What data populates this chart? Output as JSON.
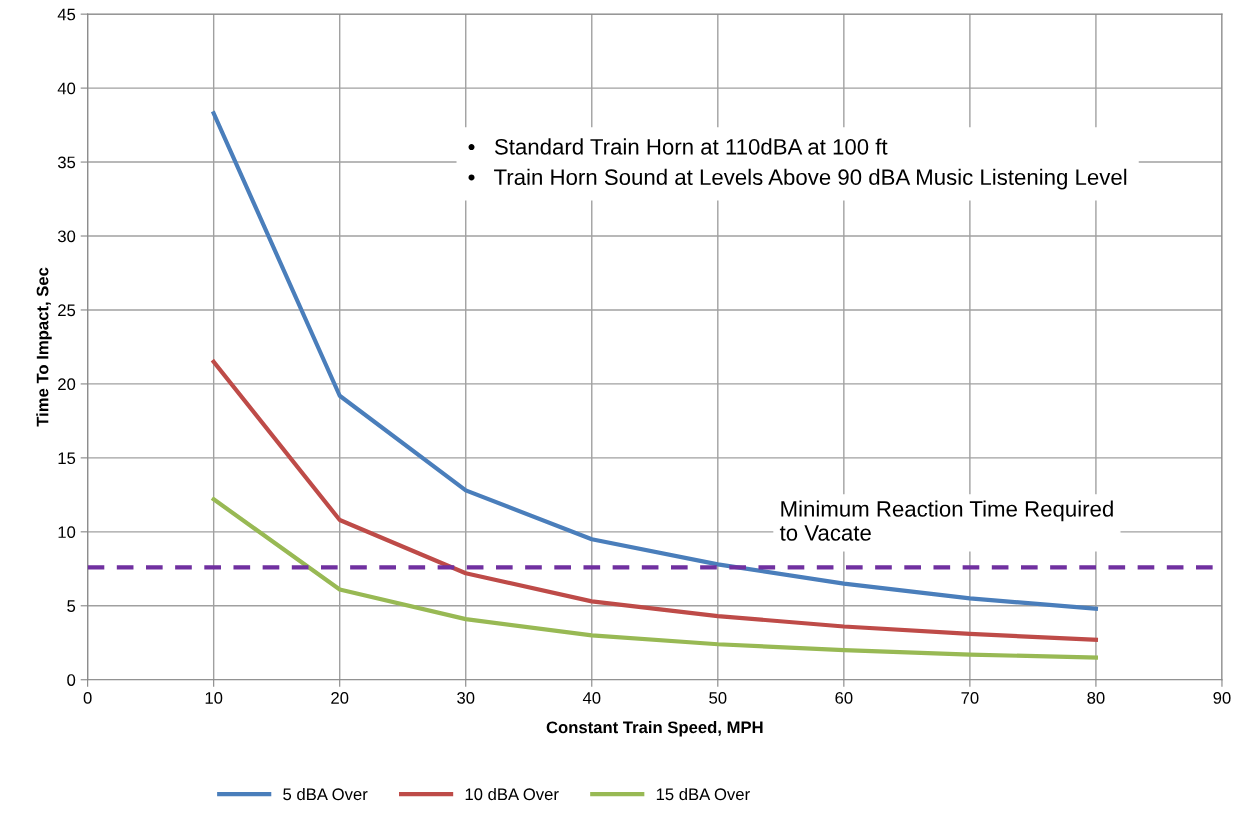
{
  "chart_data": {
    "type": "line",
    "xlabel": "Constant Train Speed, MPH",
    "ylabel": "Time To Impact, Sec",
    "x": [
      10,
      20,
      30,
      40,
      50,
      60,
      70,
      80
    ],
    "series": [
      {
        "name": "5 dBA Over",
        "color": "#4a7ebb",
        "values": [
          38.3,
          19.2,
          12.8,
          9.5,
          7.8,
          6.5,
          5.5,
          4.8
        ]
      },
      {
        "name": "10 dBA Over",
        "color": "#be4b48",
        "values": [
          21.5,
          10.8,
          7.2,
          5.3,
          4.3,
          3.6,
          3.1,
          2.7
        ]
      },
      {
        "name": "15 dBA Over",
        "color": "#98b954",
        "values": [
          12.2,
          6.1,
          4.1,
          3.0,
          2.4,
          2.0,
          1.7,
          1.5
        ]
      }
    ],
    "xlim": [
      0,
      90
    ],
    "xticks": [
      0,
      10,
      20,
      30,
      40,
      50,
      60,
      70,
      80,
      90
    ],
    "ylim": [
      0,
      45
    ],
    "yticks": [
      0,
      5,
      10,
      15,
      20,
      25,
      30,
      35,
      40,
      45
    ],
    "ref_lines": [
      {
        "axis": "y",
        "value": 7.6,
        "label": "Minimum Reaction Time Required\nto Vacate",
        "color": "#7030a0",
        "line_style": "dashed"
      }
    ],
    "annotations": [
      "•   Standard Train Horn at 110dBA at 100 ft",
      "•   Train Horn Sound at Levels Above 90 dBA Music Listening Level"
    ],
    "grid": true,
    "legend": "bottom",
    "marker": "none",
    "line_style": "solid"
  }
}
